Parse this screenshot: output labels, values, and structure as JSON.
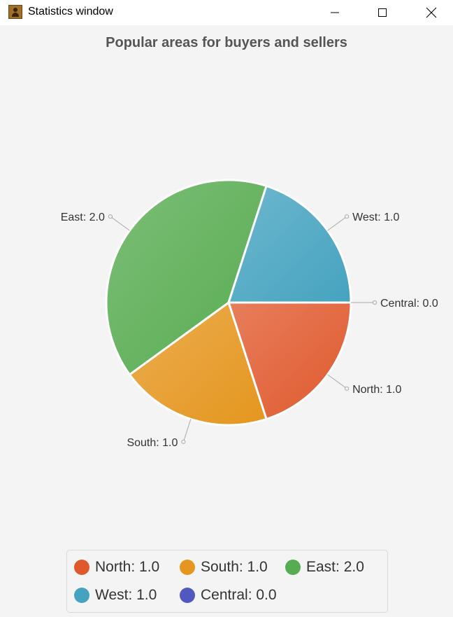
{
  "window": {
    "title": "Statistics window",
    "icon": "address-book-icon",
    "controls": [
      "minimize-icon",
      "maximize-icon",
      "close-icon"
    ]
  },
  "chart_data": {
    "type": "pie",
    "title": "Popular areas for buyers and sellers",
    "slices": [
      {
        "name": "North",
        "value": 1.0,
        "label": "North: 1.0",
        "color": "#e0592d"
      },
      {
        "name": "South",
        "value": 1.0,
        "label": "South: 1.0",
        "color": "#e5961e"
      },
      {
        "name": "East",
        "value": 2.0,
        "label": "East: 2.0",
        "color": "#57ac51"
      },
      {
        "name": "West",
        "value": 1.0,
        "label": "West: 1.0",
        "color": "#45a3c0"
      },
      {
        "name": "Central",
        "value": 0.0,
        "label": "Central: 0.0",
        "color": "#5158c0"
      }
    ],
    "start_angle_deg": 0,
    "direction": "clockwise",
    "legend_position": "bottom"
  }
}
